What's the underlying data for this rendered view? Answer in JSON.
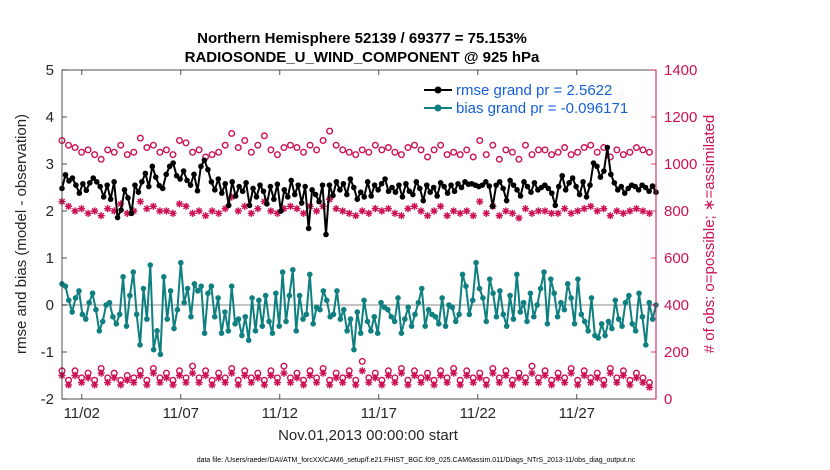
{
  "chart_data": {
    "type": "line",
    "title": "Northern Hemisphere 52139 / 69377 = 75.153%",
    "subtitle": "RADIOSONDE_U_WIND_COMPONENT @ 925 hPa",
    "xlabel": "Nov.01,2013 00:00:00 start",
    "ylabel_left": "rmse and bias (model - observation)",
    "ylabel_right": "# of obs: o=possible; ∗=assimilated",
    "footnote": "data file: /Users/raeder/DAI/ATM_forcXX/CAM6_setup/f.e21.FHIST_BGC.f09_025.CAM6assim.011/Diags_NTrS_2013-11/obs_diag_output.nc",
    "x_ticks": [
      "11/02",
      "11/07",
      "11/12",
      "11/17",
      "11/22",
      "11/27"
    ],
    "x_tick_days": [
      2,
      7,
      12,
      17,
      22,
      27
    ],
    "xlim": [
      1.0,
      31.0
    ],
    "ylim_left": [
      -2,
      5
    ],
    "yticks_left": [
      "-2",
      "-1",
      "0",
      "1",
      "2",
      "3",
      "4",
      "5"
    ],
    "ylim_right": [
      0,
      1400
    ],
    "yticks_right": [
      "0",
      "200",
      "400",
      "600",
      "800",
      "1000",
      "1200",
      "1400"
    ],
    "legend": [
      "rmse grand pr = 2.5622",
      "bias grand pr = -0.096171"
    ],
    "colors": {
      "rmse": "#000000",
      "bias": "#0f7f80",
      "obs": "#cc1155",
      "zero": "#b0b0b0"
    },
    "rmse": [
      2.48,
      2.77,
      2.64,
      2.7,
      2.55,
      2.38,
      2.58,
      2.44,
      2.6,
      2.7,
      2.62,
      2.52,
      2.3,
      2.55,
      2.25,
      2.62,
      1.86,
      2.02,
      2.45,
      2.28,
      1.95,
      2.55,
      2.4,
      2.62,
      2.8,
      2.52,
      2.95,
      2.72,
      2.54,
      2.48,
      2.78,
      2.95,
      3.02,
      2.75,
      2.68,
      2.85,
      2.65,
      2.55,
      2.78,
      2.43,
      2.95,
      3.08,
      2.88,
      2.62,
      2.45,
      2.68,
      2.38,
      2.58,
      2.12,
      2.62,
      2.32,
      2.52,
      2.42,
      2.6,
      2.12,
      2.48,
      2.3,
      2.55,
      2.42,
      2.15,
      2.52,
      2.25,
      2.57,
      2.0,
      2.45,
      2.3,
      2.65,
      2.35,
      2.55,
      2.17,
      2.52,
      1.63,
      2.45,
      2.35,
      2.2,
      2.55,
      1.5,
      2.55,
      2.33,
      2.62,
      2.45,
      2.58,
      2.35,
      2.68,
      2.5,
      2.25,
      2.4,
      2.3,
      2.62,
      2.32,
      2.55,
      2.45,
      2.58,
      2.68,
      2.42,
      2.5,
      2.4,
      2.55,
      2.3,
      2.58,
      2.42,
      2.35,
      2.62,
      2.48,
      2.22,
      2.55,
      2.4,
      2.5,
      2.32,
      2.6,
      2.52,
      2.38,
      2.55,
      2.42,
      2.58,
      2.5,
      2.62,
      2.57,
      2.58,
      2.55,
      2.52,
      2.55,
      2.62,
      2.53,
      2.1,
      2.55,
      2.62,
      2.48,
      2.22,
      2.65,
      2.55,
      2.45,
      2.32,
      2.62,
      2.52,
      2.4,
      2.6,
      2.45,
      2.5,
      2.55,
      2.48,
      2.38,
      2.12,
      2.52,
      2.75,
      2.45,
      2.6,
      2.7,
      2.52,
      2.35,
      2.62,
      2.3,
      2.55,
      3.02,
      2.95,
      2.72,
      2.85,
      3.35,
      2.78,
      2.6,
      2.45,
      2.52,
      2.38,
      2.48,
      2.55,
      2.52,
      2.45,
      2.55,
      2.5,
      2.42,
      2.53,
      2.4
    ],
    "bias": [
      0.45,
      0.4,
      0.1,
      -0.15,
      0.15,
      0.3,
      -0.2,
      -0.3,
      0.05,
      0.25,
      -0.1,
      -0.55,
      -0.35,
      0.0,
      0.05,
      -0.25,
      -0.4,
      -0.2,
      0.6,
      -0.45,
      0.2,
      0.7,
      -0.2,
      -0.85,
      0.35,
      -0.3,
      0.85,
      -0.95,
      -0.55,
      -1.05,
      0.6,
      -0.3,
      0.3,
      -0.5,
      -0.1,
      0.9,
      0.05,
      0.35,
      -0.25,
      0.45,
      0.3,
      0.4,
      -0.6,
      0.25,
      0.4,
      -0.25,
      0.15,
      -0.6,
      -0.15,
      -0.55,
      0.4,
      -0.4,
      -0.3,
      -0.65,
      -0.25,
      -0.75,
      0.15,
      -0.55,
      0.1,
      -0.45,
      0.2,
      -0.35,
      -0.6,
      0.25,
      -0.45,
      0.7,
      -0.35,
      0.2,
      0.75,
      -0.55,
      0.2,
      -0.3,
      -0.2,
      0.65,
      -0.4,
      -0.05,
      -0.1,
      0.3,
      0.1,
      -0.25,
      -0.2,
      0.3,
      -0.3,
      -0.1,
      -0.55,
      -0.3,
      -0.95,
      -0.15,
      -0.6,
      0.1,
      -0.35,
      -0.55,
      -0.25,
      -0.6,
      0.05,
      -0.05,
      -0.1,
      -0.25,
      -0.35,
      0.15,
      -0.6,
      -0.3,
      -0.05,
      -0.45,
      -0.2,
      0.05,
      0.35,
      -0.45,
      -0.1,
      -0.2,
      -0.25,
      -0.4,
      0.15,
      -0.45,
      0.0,
      -0.05,
      -0.35,
      -0.2,
      0.65,
      0.4,
      -0.2,
      0.1,
      0.9,
      0.35,
      0.15,
      -0.35,
      0.55,
      0.25,
      -0.25,
      0.3,
      -0.2,
      -0.45,
      0.2,
      -0.3,
      0.65,
      -0.15,
      0.05,
      -0.35,
      0.25,
      -0.25,
      0.0,
      0.35,
      0.7,
      -0.4,
      0.55,
      0.25,
      -0.25,
      0.05,
      -0.1,
      0.45,
      0.15,
      -0.4,
      0.55,
      -0.2,
      -0.35,
      -0.55,
      0.15,
      -0.65,
      -0.7,
      -0.4,
      -0.65,
      -0.35,
      -0.5,
      0.1,
      -0.3,
      -0.45,
      0.05,
      0.2,
      -0.4,
      -0.55,
      0.25,
      -0.25,
      -0.85,
      0.05,
      -0.3,
      0.0
    ],
    "obs_possible_00": [
      1100,
      1080,
      1070,
      1050,
      1060,
      1040,
      1020,
      1060,
      1050,
      1080,
      1040,
      1050,
      1110,
      1070,
      1080,
      1050,
      1060,
      1040,
      1100,
      1090,
      1050,
      1060,
      1030,
      1040,
      1050,
      1080,
      1130,
      1070,
      1100,
      1050,
      1080,
      1120,
      1060,
      1040,
      1070,
      1080,
      1070,
      1050,
      1080,
      1060,
      1100,
      1140,
      1080,
      1060,
      1050,
      1040,
      1060,
      1050,
      1080,
      1060,
      1070,
      1050,
      1040,
      1070,
      1080,
      1060,
      1030,
      1060,
      1080,
      1040,
      1050,
      1040,
      1060,
      1030,
      1100,
      1040,
      1080,
      1020,
      1060,
      1050,
      1020,
      1080,
      1040,
      1060,
      1060,
      1040,
      1050,
      1070,
      1040,
      1050,
      1070,
      1080,
      1050,
      1070,
      1030,
      1060,
      1040,
      1050,
      1070,
      1060,
      1050
    ],
    "obs_assim_00": [
      840,
      820,
      800,
      810,
      790,
      800,
      780,
      810,
      800,
      830,
      790,
      800,
      840,
      810,
      820,
      800,
      800,
      790,
      830,
      820,
      790,
      800,
      780,
      800,
      790,
      810,
      860,
      800,
      820,
      790,
      810,
      840,
      800,
      790,
      810,
      820,
      810,
      790,
      820,
      800,
      820,
      850,
      810,
      800,
      790,
      780,
      800,
      790,
      810,
      800,
      810,
      790,
      780,
      810,
      820,
      800,
      780,
      800,
      820,
      780,
      800,
      790,
      800,
      780,
      840,
      790,
      820,
      780,
      800,
      790,
      770,
      810,
      790,
      800,
      800,
      790,
      790,
      810,
      790,
      800,
      810,
      820,
      800,
      810,
      780,
      800,
      790,
      800,
      810,
      800,
      790
    ],
    "obs_possible_12": [
      120,
      80,
      120,
      90,
      110,
      80,
      130,
      90,
      110,
      80,
      100,
      90,
      120,
      80,
      130,
      90,
      110,
      80,
      120,
      90,
      140,
      90,
      120,
      80,
      110,
      90,
      130,
      80,
      120,
      90,
      110,
      80,
      120,
      90,
      140,
      90,
      110,
      80,
      120,
      90,
      130,
      80,
      110,
      90,
      120,
      80,
      160,
      90,
      110,
      80,
      120,
      90,
      130,
      80,
      120,
      90,
      110,
      80,
      120,
      90,
      130,
      80,
      120,
      90,
      110,
      80,
      130,
      90,
      120,
      80,
      110,
      90,
      140,
      90,
      120,
      80,
      110,
      90,
      130,
      80,
      120,
      90,
      110,
      80,
      130,
      90,
      120,
      80,
      110,
      90,
      70
    ],
    "obs_assim_12": [
      100,
      60,
      100,
      70,
      90,
      60,
      110,
      70,
      90,
      60,
      80,
      70,
      100,
      60,
      110,
      70,
      90,
      60,
      100,
      70,
      110,
      70,
      100,
      60,
      90,
      70,
      110,
      60,
      100,
      70,
      90,
      60,
      100,
      70,
      110,
      70,
      90,
      60,
      100,
      70,
      110,
      60,
      90,
      70,
      100,
      60,
      120,
      70,
      90,
      60,
      100,
      70,
      110,
      60,
      100,
      70,
      90,
      60,
      100,
      70,
      110,
      60,
      100,
      70,
      90,
      60,
      110,
      70,
      100,
      60,
      90,
      70,
      110,
      70,
      100,
      60,
      90,
      70,
      110,
      60,
      100,
      70,
      90,
      60,
      110,
      70,
      100,
      60,
      90,
      70,
      50
    ]
  }
}
